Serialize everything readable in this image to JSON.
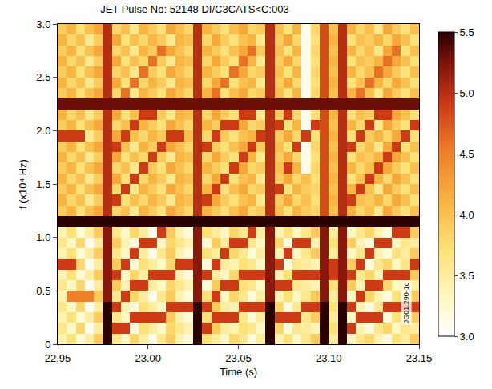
{
  "chart_data": {
    "type": "heatmap",
    "title": "JET Pulse No: 52148 DI/C3CATS<C:003",
    "x_label": "Time (s)",
    "y_label": "f (x10⁴ Hz)",
    "annotations": [
      "JG01.290-1c"
    ],
    "xlim": [
      22.95,
      23.15
    ],
    "xticks": [
      22.95,
      {
        "value": 23,
        "label": "23.00"
      },
      23.05,
      {
        "value": 23.1,
        "label": "23.10"
      },
      23.15
    ],
    "ylim": [
      0,
      3
    ],
    "yticks": [
      0,
      0.5,
      {
        "value": 1,
        "label": "1.0"
      },
      1.5,
      {
        "value": 2,
        "label": "2.0"
      },
      2.5,
      {
        "value": 3,
        "label": "3.0"
      }
    ],
    "color_range": [
      3,
      5.5
    ],
    "color_ticks": [
      {
        "value": 3,
        "label": "3.0"
      },
      3.5,
      {
        "value": 4,
        "label": "4.0"
      },
      4.5,
      {
        "value": 5,
        "label": "5.0"
      },
      5.5
    ],
    "x": [
      22.9525,
      22.9575,
      22.9625,
      22.9675,
      22.9725,
      22.9775,
      22.9825,
      22.9875,
      22.9925,
      22.9975,
      23.0025,
      23.0075,
      23.0125,
      23.0175,
      23.0225,
      23.0275,
      23.0325,
      23.0375,
      23.0425,
      23.0475,
      23.0525,
      23.0575,
      23.0625,
      23.0675,
      23.0725,
      23.0775,
      23.0825,
      23.0875,
      23.0925,
      23.0975,
      23.1025,
      23.1075,
      23.1125,
      23.1175,
      23.1225,
      23.1275,
      23.1325,
      23.1375,
      23.1425,
      23.1475
    ],
    "y": [
      0.05,
      0.15,
      0.25,
      0.35,
      0.45,
      0.55,
      0.65,
      0.75,
      0.85,
      0.95,
      1.05,
      1.15,
      1.25,
      1.35,
      1.45,
      1.55,
      1.65,
      1.75,
      1.85,
      1.95,
      2.05,
      2.15,
      2.25,
      2.35,
      2.45,
      2.55,
      2.65,
      2.75,
      2.85,
      2.95
    ],
    "cells": [
      [
        3.4,
        3.7,
        3.2,
        3.5,
        3.9,
        5.5,
        3.6,
        3.3,
        3.8,
        3.5,
        3.1,
        3.6,
        3.9,
        3.4,
        3.2,
        5.5,
        3.7,
        3.5,
        3.3,
        3.8,
        3.6,
        3.2,
        3.5,
        5.5,
        3.4,
        3.7,
        3.3,
        3.6,
        3.9,
        5.5,
        3.5,
        5.5,
        3.3,
        3.6,
        3.8,
        3.4,
        3.2,
        3.7,
        3.5,
        3.9
      ],
      [
        3.6,
        3.3,
        3.8,
        3.1,
        3.5,
        5.5,
        4.9,
        4.9,
        3.2,
        3.7,
        3.5,
        3.3,
        3.8,
        3.6,
        3.4,
        5.5,
        4.9,
        3.9,
        3.5,
        3.4,
        3.7,
        3.6,
        3.3,
        5.5,
        3.8,
        3.2,
        3.6,
        3.5,
        3.4,
        5.5,
        3.7,
        5.5,
        4.9,
        3.4,
        3.2,
        3.6,
        3.8,
        3.3,
        3.6,
        3.5
      ],
      [
        3.4,
        3.7,
        3.2,
        3.5,
        3.9,
        5.5,
        3.6,
        3.3,
        4.9,
        4.9,
        4.9,
        4.9,
        3.9,
        3.4,
        3.2,
        5.5,
        3.7,
        4.9,
        4.9,
        4.9,
        3.6,
        3.2,
        3.5,
        5.5,
        4.9,
        4.9,
        4.9,
        3.6,
        3.9,
        5.5,
        3.5,
        5.5,
        3.3,
        4.9,
        4.9,
        4.9,
        3.2,
        3.7,
        3.5,
        3.9
      ],
      [
        3.6,
        3.3,
        3.8,
        3.1,
        3.5,
        5.5,
        4.9,
        3.4,
        3.2,
        3.7,
        3.5,
        3.3,
        4.9,
        4.9,
        4.9,
        5.5,
        4.9,
        3.9,
        3.5,
        3.4,
        4.9,
        4.9,
        4.9,
        5.5,
        3.8,
        3.2,
        3.6,
        4.9,
        4.9,
        5.5,
        3.7,
        5.5,
        4.9,
        3.4,
        3.2,
        3.6,
        4.9,
        4.9,
        4.9,
        4.9
      ],
      [
        3.4,
        4.5,
        4.5,
        4.5,
        3.9,
        5.2,
        3.6,
        4.9,
        3.8,
        3.5,
        3.1,
        3.6,
        3.9,
        3.4,
        3.2,
        5.2,
        3.7,
        4.9,
        3.3,
        3.8,
        3.6,
        3.2,
        3.5,
        5.2,
        3.4,
        3.7,
        3.3,
        3.6,
        3.9,
        5.2,
        3.5,
        5.2,
        3.3,
        4.9,
        3.8,
        3.4,
        3.2,
        3.7,
        3.5,
        3.9
      ],
      [
        3.6,
        3.3,
        3.8,
        3.1,
        3.5,
        5.2,
        3.9,
        3.4,
        4.9,
        4.9,
        3.5,
        3.3,
        3.8,
        3.6,
        3.4,
        5.2,
        3.2,
        3.9,
        4.9,
        4.9,
        3.7,
        3.6,
        3.3,
        5.2,
        4.9,
        4.9,
        3.6,
        3.5,
        3.4,
        5.2,
        3.7,
        5.2,
        3.9,
        3.4,
        4.9,
        4.9,
        3.8,
        3.3,
        3.6,
        3.5
      ],
      [
        3.4,
        3.7,
        3.2,
        3.5,
        3.9,
        5.2,
        4.9,
        3.3,
        3.8,
        3.5,
        4.9,
        4.9,
        4.9,
        3.4,
        3.2,
        5.2,
        4.9,
        3.5,
        3.3,
        3.8,
        4.9,
        4.9,
        4.9,
        5.2,
        3.4,
        3.7,
        4.9,
        4.9,
        4.9,
        5.2,
        4.9,
        5.2,
        4.9,
        3.6,
        3.8,
        3.4,
        4.9,
        4.9,
        4.9,
        3.9
      ],
      [
        4.9,
        4.9,
        3.8,
        3.1,
        3.5,
        5.2,
        3.9,
        4.9,
        3.2,
        3.7,
        3.5,
        3.3,
        3.8,
        4.9,
        4.9,
        5.2,
        3.2,
        4.9,
        3.5,
        3.4,
        3.7,
        3.6,
        3.3,
        5.2,
        4.9,
        3.2,
        3.6,
        3.5,
        3.4,
        5.2,
        4.9,
        5.2,
        3.9,
        4.9,
        3.2,
        3.6,
        3.8,
        3.3,
        3.6,
        4.9
      ],
      [
        3.4,
        3.7,
        3.2,
        3.5,
        3.9,
        5.2,
        3.6,
        3.3,
        4.9,
        3.5,
        3.1,
        3.6,
        3.9,
        3.4,
        3.2,
        5.2,
        3.7,
        3.5,
        4.9,
        3.8,
        3.6,
        3.2,
        3.5,
        5.2,
        3.4,
        4.9,
        3.3,
        3.6,
        3.9,
        5.2,
        3.5,
        5.2,
        3.3,
        3.6,
        4.9,
        3.4,
        3.2,
        3.7,
        3.5,
        3.9
      ],
      [
        3.6,
        3.3,
        3.8,
        3.1,
        3.5,
        5.2,
        3.9,
        3.4,
        3.2,
        4.9,
        4.9,
        3.3,
        3.8,
        3.6,
        3.4,
        5.2,
        3.2,
        3.9,
        3.5,
        4.9,
        4.9,
        3.6,
        3.3,
        5.2,
        3.8,
        3.2,
        4.9,
        4.9,
        3.4,
        5.2,
        3.7,
        5.2,
        3.9,
        3.4,
        3.2,
        4.9,
        4.9,
        3.3,
        3.6,
        3.5
      ],
      [
        3.4,
        3.7,
        3.2,
        3.5,
        3.9,
        5.2,
        3.6,
        3.3,
        3.8,
        3.5,
        3.1,
        4.9,
        3.9,
        3.4,
        3.2,
        5.2,
        3.7,
        3.5,
        3.3,
        3.8,
        3.6,
        4.9,
        3.5,
        5.2,
        3.4,
        3.7,
        3.3,
        3.6,
        3.9,
        5.2,
        3.5,
        5.2,
        3.3,
        3.6,
        3.8,
        3.4,
        3.2,
        4.9,
        4.9,
        3.9
      ],
      [
        5.5,
        5.5,
        5.5,
        5.5,
        5.5,
        5.5,
        5.5,
        5.5,
        5.5,
        5.5,
        5.5,
        5.5,
        5.5,
        5.5,
        5.5,
        5.5,
        5.5,
        5.5,
        5.5,
        5.5,
        5.5,
        5.5,
        5.5,
        5.5,
        5.5,
        5.5,
        5.5,
        5.5,
        5.5,
        5.5,
        5.5,
        5.5,
        5.5,
        5.5,
        5.5,
        5.5,
        5.5,
        5.5,
        5.5,
        5.5
      ],
      [
        3.9,
        4.1,
        3.7,
        4.0,
        4.2,
        5.0,
        3.8,
        4.0,
        3.6,
        4.1,
        3.9,
        3.7,
        4.2,
        4.0,
        3.8,
        5.0,
        4.1,
        3.9,
        3.7,
        4.0,
        4.2,
        3.8,
        3.9,
        5.0,
        4.0,
        3.7,
        4.1,
        3.9,
        3.8,
        4.8,
        4.0,
        5.0,
        4.1,
        3.8,
        4.0,
        3.6,
        4.2,
        3.9,
        3.7,
        4.0
      ],
      [
        4.1,
        3.8,
        4.0,
        3.6,
        3.9,
        5.0,
        4.9,
        3.7,
        4.0,
        3.8,
        4.1,
        3.9,
        3.6,
        4.1,
        4.0,
        5.0,
        4.9,
        4.2,
        3.9,
        3.7,
        4.0,
        4.1,
        3.6,
        5.0,
        3.9,
        4.2,
        3.8,
        4.0,
        3.7,
        4.8,
        4.1,
        5.0,
        4.9,
        4.0,
        3.9,
        4.1,
        3.8,
        4.2,
        4.0,
        3.7
      ],
      [
        3.9,
        4.1,
        3.7,
        4.0,
        4.2,
        5.0,
        3.8,
        4.9,
        3.6,
        4.1,
        3.9,
        3.7,
        4.2,
        4.0,
        3.8,
        5.0,
        4.1,
        4.9,
        3.7,
        4.0,
        4.2,
        3.8,
        3.9,
        5.0,
        4.9,
        3.7,
        4.1,
        3.9,
        3.8,
        4.8,
        4.0,
        5.0,
        4.1,
        4.9,
        4.0,
        3.6,
        4.2,
        3.9,
        3.7,
        4.0
      ],
      [
        4.1,
        3.8,
        4.0,
        3.6,
        3.9,
        5.0,
        4.2,
        3.7,
        4.9,
        3.8,
        4.1,
        3.9,
        3.6,
        4.1,
        4.0,
        5.0,
        3.8,
        4.2,
        4.9,
        3.7,
        4.0,
        4.1,
        3.6,
        5.0,
        3.9,
        4.2,
        3.8,
        4.0,
        3.7,
        4.8,
        4.1,
        5.0,
        3.7,
        4.0,
        4.9,
        4.1,
        3.8,
        4.2,
        4.0,
        3.7
      ],
      [
        3.9,
        4.1,
        3.7,
        4.0,
        4.2,
        5.0,
        3.8,
        4.0,
        3.6,
        4.9,
        3.9,
        3.7,
        4.2,
        4.0,
        3.8,
        5.0,
        4.1,
        3.9,
        3.7,
        4.9,
        4.2,
        3.8,
        3.9,
        5.0,
        4.0,
        4.9,
        4.1,
        3.1,
        3.8,
        4.8,
        4.0,
        5.0,
        4.1,
        3.8,
        4.0,
        4.9,
        4.2,
        3.9,
        3.7,
        4.0
      ],
      [
        4.1,
        3.8,
        4.0,
        3.6,
        3.9,
        5.0,
        4.2,
        3.7,
        4.0,
        3.8,
        4.9,
        3.9,
        3.6,
        4.1,
        4.0,
        5.0,
        3.8,
        4.2,
        3.9,
        3.7,
        4.9,
        4.1,
        3.6,
        5.0,
        3.9,
        4.2,
        3.8,
        3.1,
        3.7,
        4.8,
        4.1,
        5.0,
        3.7,
        4.0,
        3.9,
        4.1,
        4.9,
        4.2,
        4.0,
        3.7
      ],
      [
        3.9,
        4.1,
        3.7,
        4.0,
        4.2,
        5.0,
        4.9,
        4.0,
        3.6,
        4.1,
        3.9,
        4.9,
        4.2,
        4.0,
        3.8,
        5.0,
        4.9,
        3.9,
        3.7,
        4.0,
        4.2,
        4.9,
        3.9,
        5.0,
        4.0,
        3.7,
        4.9,
        3.1,
        3.8,
        4.8,
        4.0,
        5.0,
        4.9,
        3.8,
        4.0,
        3.6,
        4.2,
        4.9,
        3.7,
        4.0
      ],
      [
        4.9,
        4.9,
        4.9,
        3.6,
        3.9,
        5.0,
        4.2,
        4.9,
        4.0,
        3.8,
        4.1,
        3.9,
        4.9,
        4.9,
        4.0,
        5.0,
        3.8,
        4.9,
        3.9,
        3.7,
        4.0,
        4.1,
        4.9,
        5.0,
        3.9,
        4.2,
        3.8,
        4.9,
        3.7,
        4.8,
        4.1,
        5.0,
        3.7,
        4.9,
        3.9,
        4.1,
        3.8,
        4.2,
        4.9,
        3.7
      ],
      [
        3.9,
        4.1,
        3.7,
        4.0,
        4.2,
        5.0,
        3.8,
        4.0,
        4.9,
        4.1,
        3.9,
        3.7,
        4.2,
        4.0,
        3.8,
        5.0,
        4.1,
        3.9,
        4.9,
        4.9,
        4.2,
        3.8,
        3.9,
        5.0,
        4.9,
        3.7,
        4.1,
        3.1,
        4.9,
        4.8,
        4.0,
        5.0,
        4.1,
        3.8,
        4.9,
        3.6,
        4.2,
        3.9,
        3.7,
        4.9
      ],
      [
        4.1,
        3.8,
        4.0,
        3.6,
        3.9,
        5.0,
        4.2,
        3.7,
        4.0,
        4.9,
        4.9,
        3.9,
        3.6,
        4.1,
        4.0,
        5.0,
        3.8,
        4.2,
        3.9,
        3.7,
        4.9,
        4.9,
        3.6,
        5.0,
        3.9,
        4.9,
        3.8,
        3.1,
        3.7,
        4.8,
        4.1,
        5.0,
        3.7,
        4.0,
        3.9,
        4.9,
        4.9,
        4.2,
        4.0,
        3.7
      ],
      [
        5.3,
        5.3,
        5.3,
        5.3,
        5.3,
        5.3,
        5.3,
        5.3,
        5.3,
        5.3,
        5.3,
        5.3,
        5.3,
        5.3,
        5.3,
        5.3,
        5.3,
        5.3,
        5.3,
        5.3,
        5.3,
        5.3,
        5.3,
        5.3,
        5.3,
        5.3,
        5.3,
        5.3,
        5.3,
        5.3,
        5.3,
        5.3,
        5.3,
        5.3,
        5.3,
        5.3,
        5.3,
        5.3,
        5.3,
        5.3
      ],
      [
        3.9,
        4.1,
        3.7,
        4.0,
        4.2,
        5.0,
        3.8,
        4.6,
        3.6,
        4.1,
        3.9,
        3.7,
        4.2,
        4.0,
        3.8,
        5.0,
        4.1,
        4.6,
        3.7,
        4.0,
        4.2,
        3.8,
        3.9,
        5.0,
        4.0,
        3.7,
        4.1,
        3.1,
        3.8,
        4.8,
        4.0,
        5.0,
        4.1,
        4.6,
        4.0,
        3.6,
        4.2,
        3.9,
        3.7,
        4.0
      ],
      [
        4.1,
        3.8,
        4.0,
        3.6,
        3.9,
        5.0,
        4.2,
        3.7,
        4.6,
        3.8,
        4.1,
        3.9,
        3.6,
        4.1,
        4.0,
        5.0,
        3.8,
        4.2,
        4.6,
        3.7,
        4.0,
        4.1,
        3.6,
        5.0,
        3.9,
        4.2,
        3.8,
        3.1,
        3.7,
        4.8,
        4.1,
        5.0,
        3.7,
        4.0,
        4.6,
        4.1,
        3.8,
        4.2,
        4.0,
        3.7
      ],
      [
        3.9,
        4.1,
        3.7,
        4.0,
        4.2,
        5.0,
        3.8,
        4.0,
        3.6,
        4.6,
        3.9,
        3.7,
        4.2,
        4.0,
        3.8,
        5.0,
        4.1,
        3.9,
        3.7,
        4.6,
        4.2,
        3.8,
        3.9,
        5.0,
        4.0,
        3.7,
        4.1,
        3.1,
        3.8,
        4.8,
        4.0,
        5.0,
        4.1,
        3.8,
        4.0,
        4.6,
        4.2,
        3.9,
        3.7,
        4.0
      ],
      [
        4.1,
        3.8,
        4.0,
        3.6,
        3.9,
        5.0,
        4.2,
        3.7,
        4.0,
        3.8,
        4.6,
        3.9,
        3.6,
        4.1,
        4.0,
        5.0,
        3.8,
        4.2,
        3.9,
        3.7,
        4.6,
        4.1,
        3.6,
        5.0,
        3.9,
        4.2,
        3.8,
        3.1,
        3.7,
        4.8,
        4.1,
        5.0,
        3.7,
        4.0,
        3.9,
        4.1,
        4.6,
        4.2,
        4.0,
        3.7
      ],
      [
        3.9,
        4.1,
        3.7,
        4.0,
        4.2,
        5.0,
        3.8,
        4.0,
        3.6,
        4.1,
        3.9,
        4.6,
        4.2,
        4.0,
        3.8,
        5.0,
        4.1,
        3.9,
        3.7,
        4.0,
        4.2,
        4.6,
        3.9,
        5.0,
        4.0,
        3.7,
        4.1,
        3.1,
        3.8,
        4.8,
        4.0,
        5.0,
        4.1,
        3.8,
        4.0,
        3.6,
        4.2,
        4.6,
        3.7,
        4.0
      ],
      [
        4.1,
        3.8,
        4.0,
        3.6,
        3.9,
        5.0,
        4.2,
        3.7,
        4.0,
        3.8,
        4.1,
        3.9,
        3.6,
        4.1,
        4.0,
        5.0,
        3.8,
        4.2,
        3.9,
        3.7,
        4.0,
        4.1,
        3.6,
        5.0,
        3.9,
        4.2,
        3.8,
        3.1,
        3.7,
        4.8,
        4.1,
        5.0,
        3.7,
        4.0,
        3.9,
        4.1,
        3.8,
        4.2,
        4.0,
        3.7
      ],
      [
        3.9,
        4.1,
        3.7,
        4.0,
        4.2,
        5.0,
        3.8,
        4.0,
        3.6,
        4.1,
        3.9,
        3.7,
        4.2,
        4.0,
        3.8,
        5.0,
        4.1,
        3.9,
        3.7,
        4.0,
        4.2,
        3.8,
        3.9,
        5.0,
        4.0,
        3.7,
        4.1,
        3.1,
        3.8,
        4.8,
        4.0,
        5.0,
        4.1,
        3.8,
        4.0,
        3.6,
        4.2,
        3.9,
        3.7,
        4.0
      ]
    ]
  }
}
